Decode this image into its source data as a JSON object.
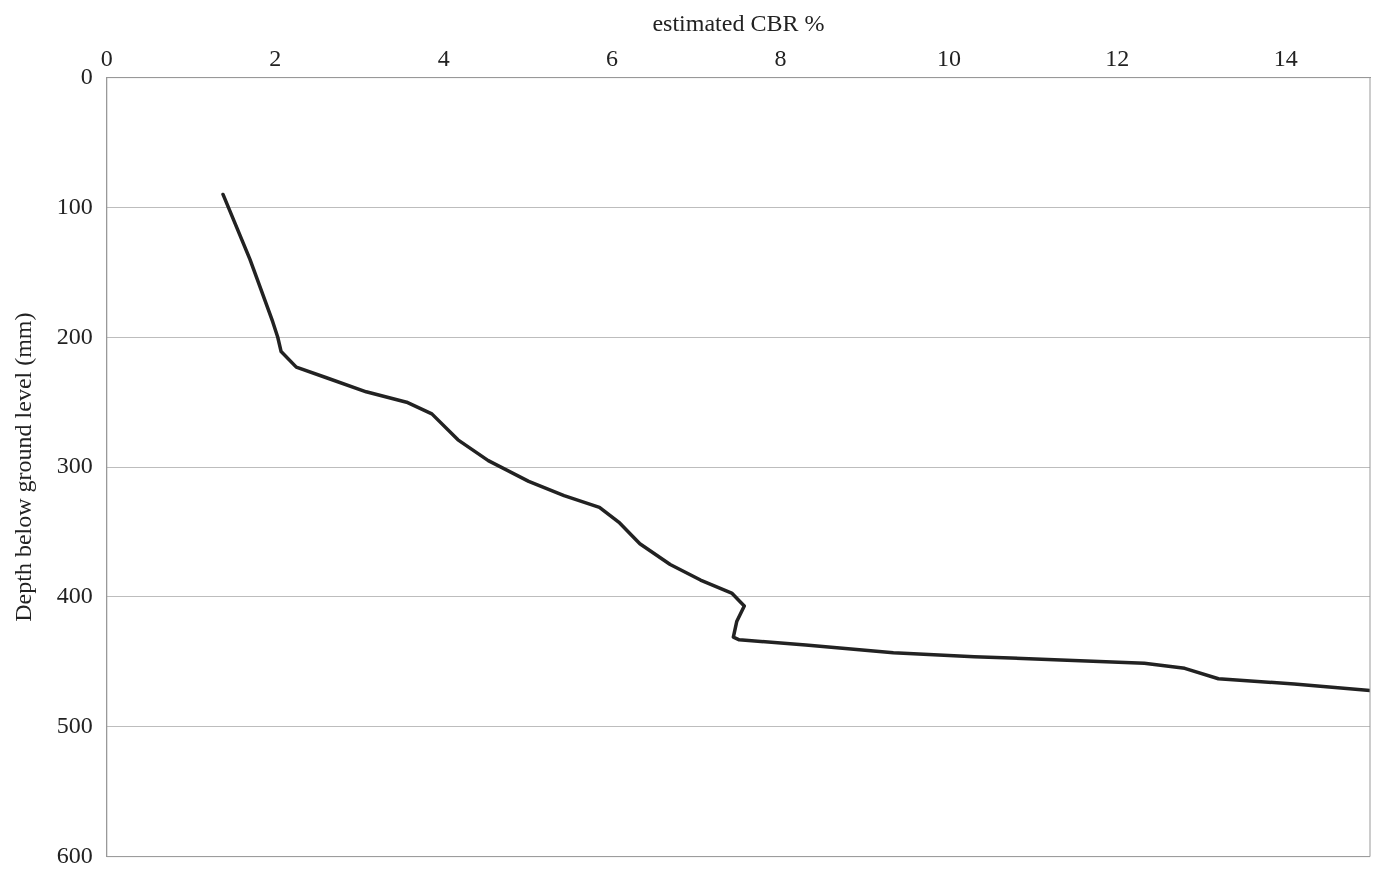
{
  "chart_data": {
    "type": "line",
    "xlabel": "estimated CBR %",
    "ylabel": "Depth below ground level (mm)",
    "xlim": [
      0,
      15
    ],
    "xticks": [
      0,
      2,
      4,
      6,
      8,
      10,
      12,
      14
    ],
    "ylim": [
      600,
      0
    ],
    "yticks": [
      0,
      100,
      200,
      300,
      400,
      500,
      600
    ],
    "grid": "y",
    "legend": false,
    "marker": "none",
    "line_style": "solid",
    "series": [
      {
        "color": "#222222",
        "x": [
          1.38,
          1.7,
          1.97,
          2.03,
          2.07,
          2.25,
          2.6,
          3.08,
          3.56,
          3.86,
          4.17,
          4.53,
          5.01,
          5.43,
          5.85,
          6.09,
          6.33,
          6.69,
          7.05,
          7.42,
          7.57,
          7.48,
          7.44,
          7.51,
          8.3,
          9.34,
          10.3,
          11.1,
          12.32,
          12.8,
          13.2,
          14.1,
          15
        ],
        "values": [
          90,
          140,
          188,
          200,
          211,
          223,
          231,
          242,
          250,
          259,
          279,
          295,
          311,
          322,
          331,
          343,
          359,
          375,
          387,
          397,
          407,
          419,
          431,
          433,
          437,
          443,
          446,
          448,
          451,
          455,
          463,
          467,
          472
        ]
      }
    ]
  }
}
